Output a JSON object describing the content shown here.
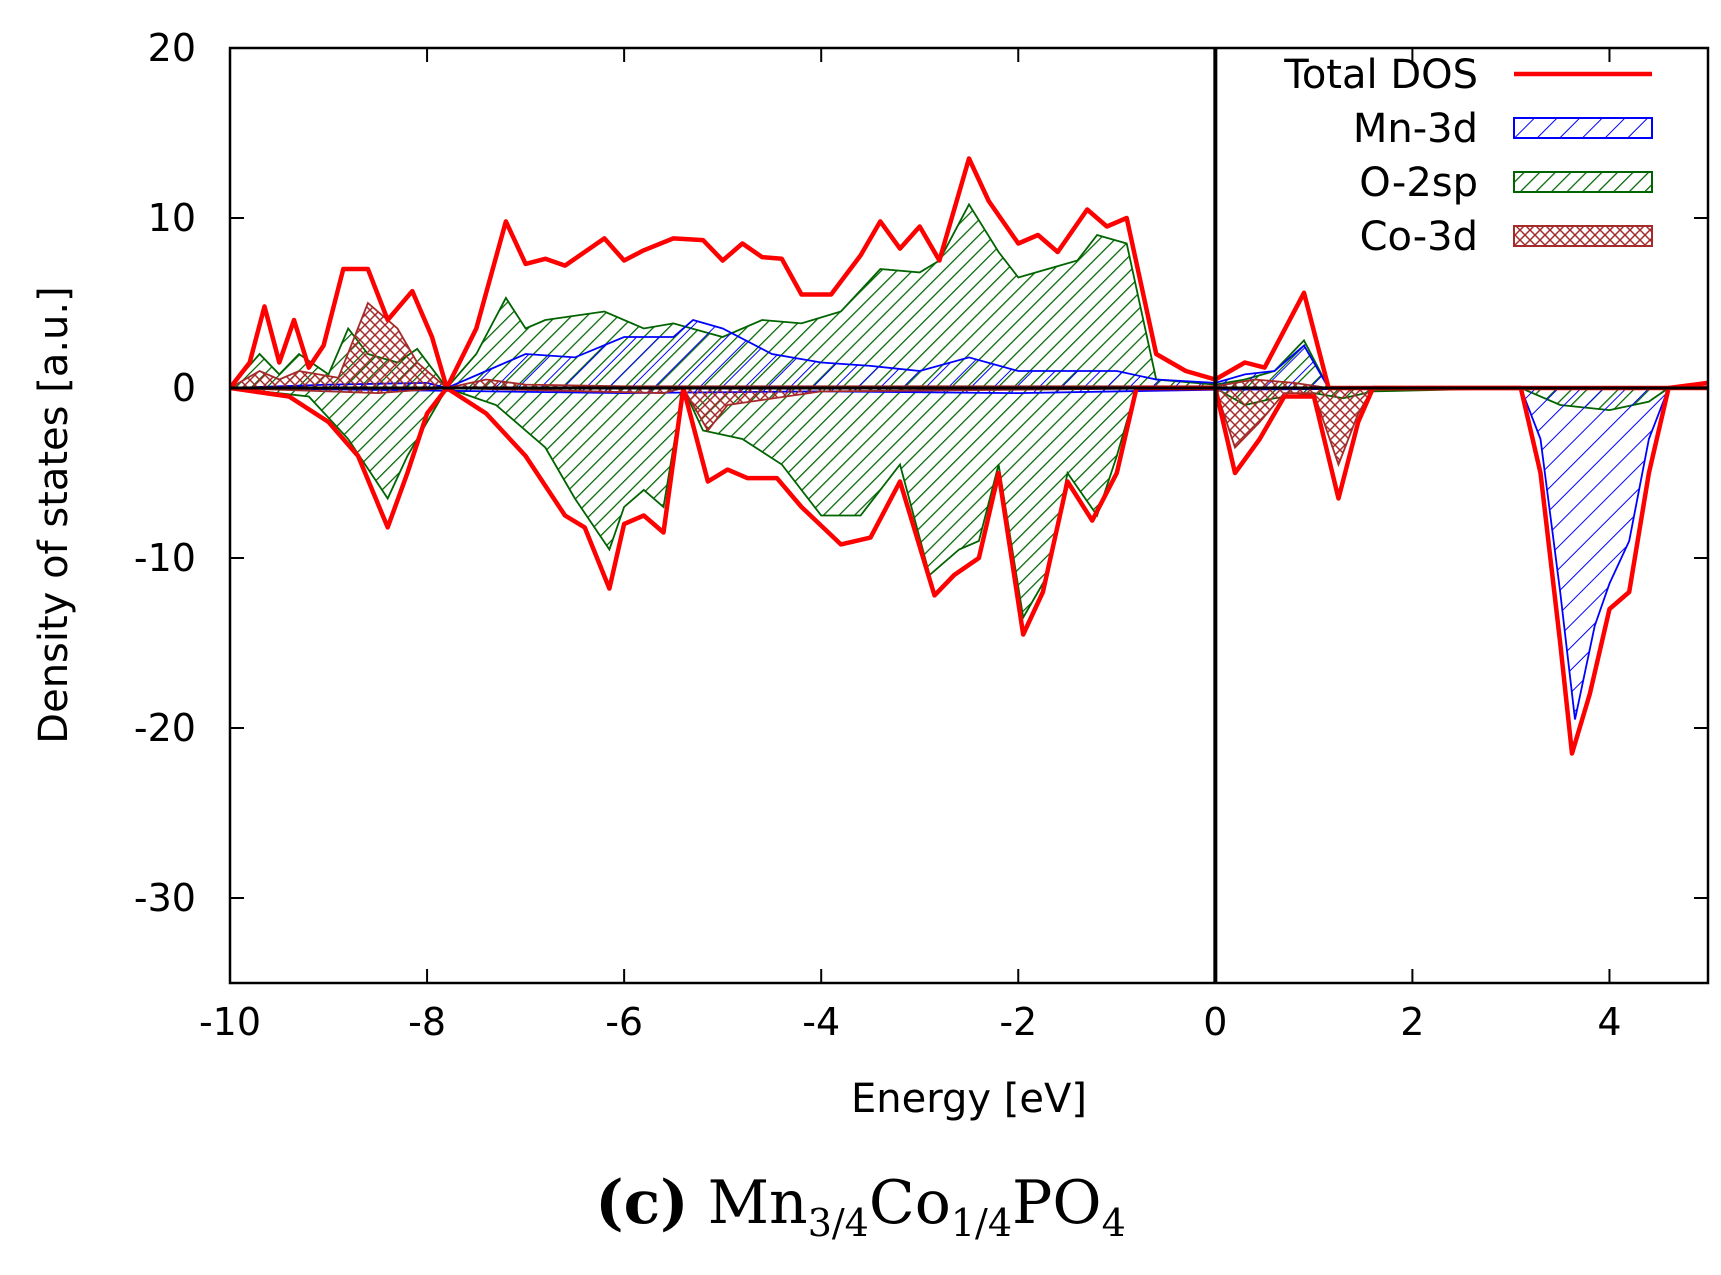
{
  "chart_data": {
    "type": "area",
    "title": "",
    "xlabel": "Energy [eV]",
    "ylabel": "Density of states [a.u.]",
    "xlim": [
      -10,
      5
    ],
    "ylim": [
      -35,
      20
    ],
    "xticks": [
      "-10",
      "-8",
      "-6",
      "-4",
      "-2",
      "0",
      "2",
      "4"
    ],
    "xtick_values": [
      -10,
      -8,
      -6,
      -4,
      -2,
      0,
      2,
      4
    ],
    "yticks": [
      "20",
      "10",
      "0",
      "-10",
      "-20",
      "-30"
    ],
    "ytick_values": [
      20,
      10,
      0,
      -10,
      -20,
      -30
    ],
    "fermi_level": 0,
    "legend_position": "top-right",
    "series": [
      {
        "name": "Total DOS",
        "style": "line",
        "color": "#ff0000",
        "up": [
          [
            -10,
            0
          ],
          [
            -9.8,
            1.5
          ],
          [
            -9.65,
            4.8
          ],
          [
            -9.5,
            1.5
          ],
          [
            -9.35,
            4.0
          ],
          [
            -9.2,
            1.2
          ],
          [
            -9.05,
            2.5
          ],
          [
            -8.85,
            7.0
          ],
          [
            -8.6,
            7.0
          ],
          [
            -8.4,
            4.0
          ],
          [
            -8.15,
            5.7
          ],
          [
            -7.95,
            3.0
          ],
          [
            -7.8,
            0
          ],
          [
            -7.5,
            3.5
          ],
          [
            -7.2,
            9.8
          ],
          [
            -7.0,
            7.3
          ],
          [
            -6.8,
            7.6
          ],
          [
            -6.6,
            7.2
          ],
          [
            -6.2,
            8.8
          ],
          [
            -6.0,
            7.5
          ],
          [
            -5.8,
            8.1
          ],
          [
            -5.5,
            8.8
          ],
          [
            -5.2,
            8.7
          ],
          [
            -5.0,
            7.5
          ],
          [
            -4.8,
            8.5
          ],
          [
            -4.6,
            7.7
          ],
          [
            -4.4,
            7.6
          ],
          [
            -4.2,
            5.5
          ],
          [
            -3.9,
            5.5
          ],
          [
            -3.6,
            7.8
          ],
          [
            -3.4,
            9.8
          ],
          [
            -3.2,
            8.2
          ],
          [
            -3.0,
            9.5
          ],
          [
            -2.8,
            7.5
          ],
          [
            -2.5,
            13.5
          ],
          [
            -2.3,
            11.0
          ],
          [
            -2.0,
            8.5
          ],
          [
            -1.8,
            9.0
          ],
          [
            -1.6,
            8.0
          ],
          [
            -1.3,
            10.5
          ],
          [
            -1.1,
            9.5
          ],
          [
            -0.9,
            10.0
          ],
          [
            -0.6,
            2.0
          ],
          [
            -0.3,
            1.0
          ],
          [
            0,
            0.5
          ],
          [
            0.3,
            1.5
          ],
          [
            0.5,
            1.2
          ],
          [
            0.9,
            5.6
          ],
          [
            1.15,
            0
          ],
          [
            2.5,
            0
          ],
          [
            4.6,
            0
          ],
          [
            5,
            0.3
          ]
        ],
        "down": [
          [
            -10,
            0
          ],
          [
            -9.4,
            -0.5
          ],
          [
            -9.0,
            -2.0
          ],
          [
            -8.7,
            -4.0
          ],
          [
            -8.4,
            -8.2
          ],
          [
            -8.2,
            -5.0
          ],
          [
            -8.0,
            -1.5
          ],
          [
            -7.8,
            0
          ],
          [
            -7.4,
            -1.5
          ],
          [
            -7.0,
            -4.0
          ],
          [
            -6.6,
            -7.5
          ],
          [
            -6.4,
            -8.2
          ],
          [
            -6.15,
            -11.8
          ],
          [
            -6.0,
            -8.0
          ],
          [
            -5.8,
            -7.5
          ],
          [
            -5.6,
            -8.5
          ],
          [
            -5.4,
            0
          ],
          [
            -5.15,
            -5.5
          ],
          [
            -4.95,
            -4.8
          ],
          [
            -4.75,
            -5.3
          ],
          [
            -4.45,
            -5.3
          ],
          [
            -4.2,
            -7.0
          ],
          [
            -3.8,
            -9.2
          ],
          [
            -3.5,
            -8.8
          ],
          [
            -3.2,
            -5.5
          ],
          [
            -2.85,
            -12.2
          ],
          [
            -2.65,
            -11.0
          ],
          [
            -2.4,
            -10.0
          ],
          [
            -2.2,
            -5.0
          ],
          [
            -1.95,
            -14.5
          ],
          [
            -1.75,
            -12.0
          ],
          [
            -1.5,
            -5.5
          ],
          [
            -1.25,
            -7.8
          ],
          [
            -1.0,
            -5.0
          ],
          [
            -0.8,
            0
          ],
          [
            0,
            0
          ],
          [
            0.2,
            -5.0
          ],
          [
            0.45,
            -3.0
          ],
          [
            0.7,
            -0.5
          ],
          [
            1.0,
            -0.5
          ],
          [
            1.25,
            -6.5
          ],
          [
            1.45,
            -2.0
          ],
          [
            1.6,
            0
          ],
          [
            3.1,
            0
          ],
          [
            3.3,
            -5.0
          ],
          [
            3.5,
            -15.0
          ],
          [
            3.62,
            -21.5
          ],
          [
            3.8,
            -18.0
          ],
          [
            4.0,
            -13.0
          ],
          [
            4.2,
            -12.0
          ],
          [
            4.4,
            -5.0
          ],
          [
            4.6,
            0
          ],
          [
            5,
            0
          ]
        ]
      },
      {
        "name": "Mn-3d",
        "style": "hatch",
        "color": "#0000ff",
        "up": [
          [
            -10,
            0
          ],
          [
            -9.0,
            0.2
          ],
          [
            -8.0,
            0.3
          ],
          [
            -7.8,
            0
          ],
          [
            -7.4,
            1.0
          ],
          [
            -7.0,
            2.0
          ],
          [
            -6.5,
            1.8
          ],
          [
            -6.0,
            3.0
          ],
          [
            -5.5,
            3.0
          ],
          [
            -5.3,
            4.0
          ],
          [
            -5.0,
            3.5
          ],
          [
            -4.5,
            2.0
          ],
          [
            -4.0,
            1.5
          ],
          [
            -3.5,
            1.3
          ],
          [
            -3.0,
            1.0
          ],
          [
            -2.5,
            1.8
          ],
          [
            -2.0,
            1.0
          ],
          [
            -1.0,
            1.0
          ],
          [
            -0.6,
            0.5
          ],
          [
            0,
            0.3
          ],
          [
            0.3,
            0.8
          ],
          [
            0.6,
            1.0
          ],
          [
            0.9,
            2.5
          ],
          [
            1.15,
            0
          ],
          [
            5,
            0
          ]
        ],
        "down": [
          [
            -10,
            0
          ],
          [
            -6.0,
            -0.3
          ],
          [
            -4.0,
            -0.2
          ],
          [
            -2.0,
            -0.3
          ],
          [
            0,
            -0.1
          ],
          [
            3.1,
            0
          ],
          [
            3.3,
            -3.0
          ],
          [
            3.5,
            -12.0
          ],
          [
            3.65,
            -19.5
          ],
          [
            3.85,
            -14.0
          ],
          [
            4.0,
            -11.5
          ],
          [
            4.2,
            -9.0
          ],
          [
            4.4,
            -3.0
          ],
          [
            4.6,
            0
          ],
          [
            5,
            0
          ]
        ]
      },
      {
        "name": "O-2sp",
        "style": "hatch",
        "color": "#006400",
        "up": [
          [
            -10,
            0
          ],
          [
            -9.7,
            2.0
          ],
          [
            -9.5,
            0.8
          ],
          [
            -9.3,
            2.0
          ],
          [
            -9.0,
            0.8
          ],
          [
            -8.8,
            3.5
          ],
          [
            -8.6,
            2.0
          ],
          [
            -8.3,
            1.5
          ],
          [
            -8.1,
            2.3
          ],
          [
            -7.8,
            0
          ],
          [
            -7.5,
            2.0
          ],
          [
            -7.2,
            5.3
          ],
          [
            -7.0,
            3.5
          ],
          [
            -6.8,
            4.0
          ],
          [
            -6.2,
            4.5
          ],
          [
            -5.8,
            3.5
          ],
          [
            -5.5,
            3.8
          ],
          [
            -5.0,
            3.0
          ],
          [
            -4.6,
            4.0
          ],
          [
            -4.2,
            3.8
          ],
          [
            -3.8,
            4.5
          ],
          [
            -3.4,
            7.0
          ],
          [
            -3.0,
            6.8
          ],
          [
            -2.8,
            7.5
          ],
          [
            -2.5,
            10.8
          ],
          [
            -2.2,
            8.0
          ],
          [
            -2.0,
            6.5
          ],
          [
            -1.7,
            7.0
          ],
          [
            -1.4,
            7.5
          ],
          [
            -1.2,
            9.0
          ],
          [
            -0.9,
            8.5
          ],
          [
            -0.6,
            0.5
          ],
          [
            0,
            0.2
          ],
          [
            0.3,
            0.5
          ],
          [
            0.6,
            1.0
          ],
          [
            0.9,
            2.8
          ],
          [
            1.15,
            0
          ],
          [
            5,
            0
          ]
        ],
        "down": [
          [
            -10,
            0
          ],
          [
            -9.2,
            -0.5
          ],
          [
            -8.8,
            -3.0
          ],
          [
            -8.4,
            -6.5
          ],
          [
            -8.2,
            -4.0
          ],
          [
            -7.8,
            0
          ],
          [
            -7.3,
            -1.0
          ],
          [
            -6.8,
            -3.5
          ],
          [
            -6.5,
            -6.5
          ],
          [
            -6.15,
            -9.5
          ],
          [
            -6.0,
            -7.0
          ],
          [
            -5.8,
            -6.0
          ],
          [
            -5.6,
            -7.0
          ],
          [
            -5.4,
            0
          ],
          [
            -5.2,
            -2.5
          ],
          [
            -4.8,
            -3.0
          ],
          [
            -4.4,
            -4.5
          ],
          [
            -4.0,
            -7.5
          ],
          [
            -3.6,
            -7.5
          ],
          [
            -3.2,
            -4.5
          ],
          [
            -2.9,
            -11.0
          ],
          [
            -2.6,
            -9.5
          ],
          [
            -2.4,
            -9.0
          ],
          [
            -2.2,
            -4.5
          ],
          [
            -1.95,
            -13.5
          ],
          [
            -1.7,
            -11.0
          ],
          [
            -1.5,
            -5.0
          ],
          [
            -1.2,
            -7.5
          ],
          [
            -1.0,
            -4.0
          ],
          [
            -0.8,
            0
          ],
          [
            0,
            0
          ],
          [
            0.3,
            -1.0
          ],
          [
            0.6,
            -0.6
          ],
          [
            1.0,
            -0.3
          ],
          [
            1.3,
            -0.6
          ],
          [
            1.6,
            -0.2
          ],
          [
            3.1,
            0
          ],
          [
            3.5,
            -1.0
          ],
          [
            4.0,
            -1.3
          ],
          [
            4.4,
            -0.8
          ],
          [
            4.6,
            0
          ],
          [
            5,
            0
          ]
        ]
      },
      {
        "name": "Co-3d",
        "style": "crosshatch",
        "color": "#a52a2a",
        "up": [
          [
            -10,
            0
          ],
          [
            -9.7,
            1.0
          ],
          [
            -9.5,
            0.5
          ],
          [
            -9.3,
            1.0
          ],
          [
            -8.9,
            0.6
          ],
          [
            -8.6,
            5.0
          ],
          [
            -8.3,
            3.5
          ],
          [
            -8.1,
            1.5
          ],
          [
            -7.8,
            0
          ],
          [
            -7.4,
            0.5
          ],
          [
            -7.0,
            0.2
          ],
          [
            -6.0,
            0.1
          ],
          [
            0,
            0.1
          ],
          [
            0.4,
            0.5
          ],
          [
            0.8,
            0.3
          ],
          [
            1.15,
            0
          ],
          [
            5,
            0
          ]
        ],
        "down": [
          [
            -10,
            0
          ],
          [
            -9.0,
            -0.2
          ],
          [
            -8.5,
            -0.3
          ],
          [
            -7.8,
            0
          ],
          [
            -5.6,
            -0.3
          ],
          [
            -5.4,
            0
          ],
          [
            -5.15,
            -2.5
          ],
          [
            -4.95,
            -1.0
          ],
          [
            -4.0,
            -0.2
          ],
          [
            0,
            0
          ],
          [
            0.2,
            -3.5
          ],
          [
            0.45,
            -2.0
          ],
          [
            0.7,
            -0.3
          ],
          [
            1.0,
            -0.3
          ],
          [
            1.25,
            -4.5
          ],
          [
            1.45,
            -1.5
          ],
          [
            1.6,
            0
          ],
          [
            5,
            0
          ]
        ]
      }
    ],
    "caption": {
      "label": "(c)",
      "formula_parts": [
        "Mn",
        "3/4",
        "Co",
        "1/4",
        "PO",
        "4"
      ]
    }
  }
}
